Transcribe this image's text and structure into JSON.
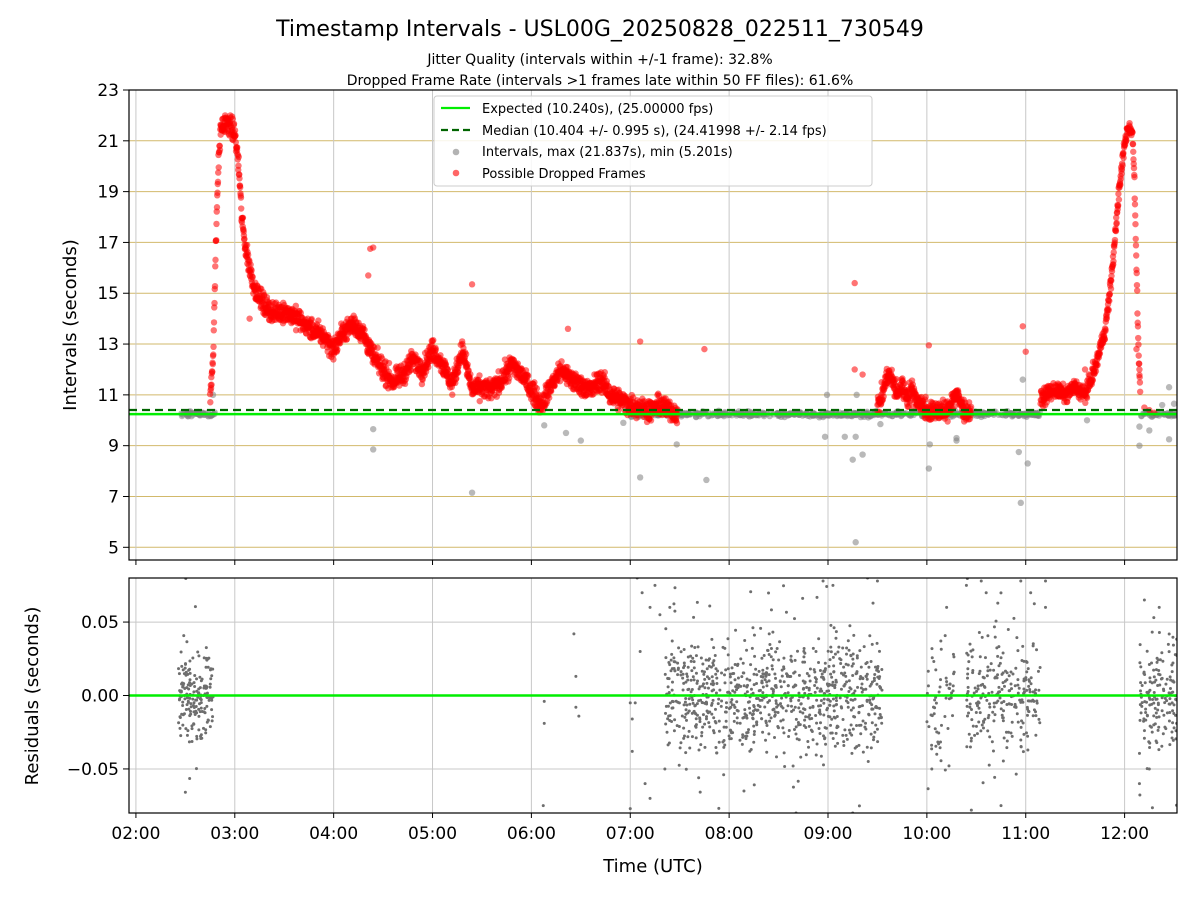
{
  "figure": {
    "title": "Timestamp Intervals - USL00G_20250828_022511_730549",
    "subtitle_lines": [
      "Jitter Quality (intervals within +/-1 frame): 32.8%",
      "Dropped Frame Rate (intervals >1 frames late within 50 FF files): 61.6%"
    ]
  },
  "colors": {
    "expected_line": "#00ee00",
    "median_line": "#006400",
    "interval_points": "#808080",
    "dropped_points": "#ff0000",
    "hgrid": "#d2b96b",
    "vgrid": "#c8c8c8",
    "residual_points": "#6e6e6e"
  },
  "chart_data": [
    {
      "type": "scatter",
      "panel": "intervals",
      "xlabel": "",
      "ylabel": "Intervals (seconds)",
      "ylim": [
        4.5,
        23
      ],
      "yticks": [
        5,
        7,
        9,
        11,
        13,
        15,
        17,
        19,
        21,
        23
      ],
      "xlim_hours": [
        1.93,
        12.53
      ],
      "xticks_hours": [
        2,
        3,
        4,
        5,
        6,
        7,
        8,
        9,
        10,
        11,
        12
      ],
      "grid": "on",
      "legend_position": "top-center",
      "legend": [
        "Expected (10.240s), (25.00000 fps)",
        "Median (10.404 +/- 0.995 s), (24.41998 +/- 2.14 fps)",
        "Intervals, max (21.837s), min (5.201s)",
        "Possible Dropped Frames"
      ],
      "expected_interval": 10.24,
      "median_interval": 10.404,
      "intervals_max": 21.837,
      "intervals_min": 5.201,
      "normal_intervals": {
        "bands": [
          {
            "x": [
              2.43,
              2.8
            ],
            "y": 10.24,
            "n": 50
          },
          {
            "x": [
              7.0,
              9.55
            ],
            "y": 10.24,
            "n": 330
          },
          {
            "x": [
              9.55,
              11.15
            ],
            "y": 10.24,
            "n": 200
          },
          {
            "x": [
              12.15,
              12.53
            ],
            "y": 10.24,
            "n": 45
          }
        ],
        "outliers": [
          [
            2.78,
            11.0
          ],
          [
            4.4,
            9.65
          ],
          [
            4.4,
            8.85
          ],
          [
            5.4,
            7.15
          ],
          [
            6.13,
            9.8
          ],
          [
            6.35,
            9.5
          ],
          [
            6.5,
            9.2
          ],
          [
            6.93,
            9.9
          ],
          [
            7.1,
            7.75
          ],
          [
            7.47,
            9.05
          ],
          [
            7.77,
            7.65
          ],
          [
            8.97,
            9.35
          ],
          [
            8.99,
            11.0
          ],
          [
            9.17,
            9.35
          ],
          [
            9.25,
            8.45
          ],
          [
            9.28,
            9.35
          ],
          [
            9.29,
            11.0
          ],
          [
            9.35,
            8.65
          ],
          [
            9.28,
            5.2
          ],
          [
            9.53,
            9.85
          ],
          [
            10.02,
            8.1
          ],
          [
            10.03,
            9.05
          ],
          [
            10.3,
            9.2
          ],
          [
            10.3,
            9.3
          ],
          [
            10.93,
            8.75
          ],
          [
            10.95,
            6.75
          ],
          [
            11.02,
            8.3
          ],
          [
            10.97,
            11.6
          ],
          [
            11.62,
            10.0
          ],
          [
            12.15,
            9.0
          ],
          [
            12.15,
            9.75
          ],
          [
            12.25,
            9.6
          ],
          [
            12.45,
            9.25
          ],
          [
            12.5,
            10.65
          ],
          [
            12.45,
            11.3
          ],
          [
            12.38,
            10.6
          ]
        ]
      },
      "dropped_frames": {
        "curve": [
          [
            2.75,
            10.8
          ],
          [
            2.78,
            12.5
          ],
          [
            2.8,
            15.5
          ],
          [
            2.82,
            18.5
          ],
          [
            2.84,
            20.5
          ],
          [
            2.86,
            21.5
          ],
          [
            2.9,
            21.7
          ],
          [
            2.95,
            21.6
          ],
          [
            3.0,
            21.3
          ],
          [
            3.04,
            20.0
          ],
          [
            3.07,
            18.0
          ],
          [
            3.1,
            17.0
          ],
          [
            3.15,
            16.0
          ],
          [
            3.2,
            15.2
          ],
          [
            3.3,
            14.5
          ],
          [
            3.4,
            14.2
          ],
          [
            3.5,
            14.3
          ],
          [
            3.6,
            14.1
          ],
          [
            3.7,
            13.8
          ],
          [
            3.8,
            13.5
          ],
          [
            3.9,
            13.3
          ],
          [
            4.0,
            12.8
          ],
          [
            4.1,
            13.5
          ],
          [
            4.2,
            13.8
          ],
          [
            4.3,
            13.4
          ],
          [
            4.4,
            12.5
          ],
          [
            4.5,
            12.0
          ],
          [
            4.6,
            11.5
          ],
          [
            4.7,
            11.8
          ],
          [
            4.8,
            12.4
          ],
          [
            4.9,
            12.0
          ],
          [
            5.0,
            12.8
          ],
          [
            5.1,
            12.2
          ],
          [
            5.2,
            11.4
          ],
          [
            5.3,
            12.8
          ],
          [
            5.4,
            11.2
          ],
          [
            5.5,
            11.3
          ],
          [
            5.6,
            11.2
          ],
          [
            5.7,
            11.6
          ],
          [
            5.8,
            12.2
          ],
          [
            5.9,
            11.8
          ],
          [
            6.0,
            11.2
          ],
          [
            6.1,
            10.6
          ],
          [
            6.2,
            11.4
          ],
          [
            6.3,
            12.0
          ],
          [
            6.4,
            11.6
          ],
          [
            6.5,
            11.4
          ],
          [
            6.6,
            11.2
          ],
          [
            6.7,
            11.6
          ],
          [
            6.8,
            11.0
          ],
          [
            6.9,
            10.8
          ],
          [
            7.0,
            10.6
          ],
          [
            7.1,
            10.5
          ],
          [
            7.2,
            10.4
          ],
          [
            7.3,
            10.6
          ],
          [
            7.4,
            10.4
          ],
          [
            7.48,
            10.3
          ]
        ],
        "curve2": [
          [
            9.5,
            10.5
          ],
          [
            9.55,
            11.0
          ],
          [
            9.6,
            11.8
          ],
          [
            9.65,
            11.6
          ],
          [
            9.7,
            11.0
          ],
          [
            9.75,
            11.4
          ],
          [
            9.8,
            10.9
          ],
          [
            9.85,
            11.2
          ],
          [
            9.9,
            10.8
          ],
          [
            9.95,
            10.6
          ],
          [
            10.0,
            10.4
          ],
          [
            10.05,
            10.3
          ],
          [
            10.1,
            10.4
          ],
          [
            10.2,
            10.3
          ],
          [
            10.25,
            10.8
          ],
          [
            10.3,
            11.0
          ],
          [
            10.35,
            10.6
          ],
          [
            10.4,
            10.3
          ],
          [
            10.45,
            10.4
          ]
        ],
        "curve3": [
          [
            11.15,
            10.8
          ],
          [
            11.2,
            11.0
          ],
          [
            11.3,
            11.2
          ],
          [
            11.4,
            11.0
          ],
          [
            11.5,
            11.3
          ],
          [
            11.6,
            11.0
          ],
          [
            11.65,
            11.5
          ],
          [
            11.7,
            12.0
          ],
          [
            11.75,
            12.8
          ],
          [
            11.8,
            13.5
          ],
          [
            11.85,
            15.0
          ],
          [
            11.9,
            17.0
          ],
          [
            11.93,
            18.5
          ],
          [
            11.96,
            19.5
          ],
          [
            11.99,
            20.6
          ],
          [
            12.02,
            21.3
          ],
          [
            12.05,
            21.6
          ],
          [
            12.08,
            21.2
          ],
          [
            12.1,
            19.5
          ],
          [
            12.12,
            16.0
          ],
          [
            12.14,
            13.0
          ],
          [
            12.16,
            10.8
          ]
        ],
        "outliers": [
          [
            3.15,
            14.0
          ],
          [
            4.35,
            15.7
          ],
          [
            4.37,
            16.75
          ],
          [
            4.4,
            16.8
          ],
          [
            5.4,
            15.35
          ],
          [
            6.37,
            13.6
          ],
          [
            7.1,
            13.1
          ],
          [
            7.75,
            12.8
          ],
          [
            9.27,
            15.4
          ],
          [
            9.27,
            12.0
          ],
          [
            9.35,
            11.8
          ],
          [
            10.02,
            12.95
          ],
          [
            10.97,
            13.7
          ],
          [
            11.0,
            12.7
          ],
          [
            11.6,
            12.0
          ],
          [
            11.6,
            11.0
          ],
          [
            11.68,
            12.3
          ],
          [
            12.12,
            12.8
          ],
          [
            12.15,
            12.0
          ],
          [
            12.2,
            10.5
          ],
          [
            12.25,
            10.4
          ],
          [
            12.3,
            10.3
          ]
        ]
      },
      "x_range_hours": [
        1.93,
        12.53
      ]
    },
    {
      "type": "scatter",
      "panel": "residuals",
      "xlabel": "Time (UTC)",
      "ylabel": "Residuals (seconds)",
      "ylim": [
        -0.08,
        0.08
      ],
      "yticks": [
        -0.05,
        0.0,
        0.05
      ],
      "ytick_labels": [
        "−0.05",
        "0.00",
        "0.05"
      ],
      "xticks_hours": [
        2,
        3,
        4,
        5,
        6,
        7,
        8,
        9,
        10,
        11,
        12
      ],
      "xtick_labels": [
        "02:00",
        "03:00",
        "04:00",
        "05:00",
        "06:00",
        "07:00",
        "08:00",
        "09:00",
        "10:00",
        "11:00",
        "12:00"
      ],
      "grid": "on",
      "zero_line": 0.0,
      "clusters": [
        {
          "x": [
            2.43,
            2.78
          ],
          "y_spread": 0.025,
          "n": 180
        },
        {
          "x": [
            7.35,
            9.55
          ],
          "y_spread": 0.035,
          "n": 900
        },
        {
          "x": [
            10.0,
            10.3
          ],
          "y_spread": 0.04,
          "n": 60
        },
        {
          "x": [
            10.4,
            11.15
          ],
          "y_spread": 0.035,
          "n": 250
        },
        {
          "x": [
            12.15,
            12.53
          ],
          "y_spread": 0.035,
          "n": 160
        }
      ],
      "sparse_points": [
        [
          6.13,
          -0.004
        ],
        [
          6.13,
          -0.019
        ],
        [
          6.12,
          -0.075
        ],
        [
          6.43,
          0.042
        ],
        [
          6.45,
          0.013
        ],
        [
          6.45,
          -0.008
        ],
        [
          6.48,
          -0.014
        ],
        [
          7.0,
          -0.005
        ],
        [
          7.02,
          -0.016
        ],
        [
          7.02,
          -0.038
        ],
        [
          7.05,
          -0.005
        ],
        [
          7.1,
          0.03
        ],
        [
          7.0,
          -0.077
        ],
        [
          7.07,
          0.08
        ],
        [
          7.12,
          0.07
        ],
        [
          7.15,
          -0.06
        ],
        [
          7.2,
          0.06
        ],
        [
          7.25,
          0.075
        ],
        [
          7.3,
          0.055
        ],
        [
          7.2,
          -0.07
        ],
        [
          7.35,
          -0.05
        ],
        [
          7.4,
          0.06
        ],
        [
          8.15,
          -0.065
        ],
        [
          8.95,
          0.078
        ],
        [
          9.05,
          0.075
        ],
        [
          9.25,
          -0.08
        ],
        [
          9.4,
          0.08
        ],
        [
          9.5,
          0.078
        ],
        [
          10.05,
          -0.05
        ],
        [
          10.1,
          -0.04
        ],
        [
          10.2,
          0.06
        ],
        [
          10.4,
          0.075
        ],
        [
          10.45,
          -0.078
        ],
        [
          10.55,
          0.078
        ],
        [
          10.6,
          0.07
        ],
        [
          10.75,
          -0.075
        ],
        [
          10.95,
          0.078
        ],
        [
          11.05,
          0.07
        ],
        [
          11.2,
          0.078
        ],
        [
          11.2,
          0.06
        ],
        [
          12.15,
          -0.06
        ],
        [
          12.25,
          -0.05
        ],
        [
          12.35,
          0.06
        ],
        [
          12.2,
          0.065
        ]
      ]
    }
  ]
}
